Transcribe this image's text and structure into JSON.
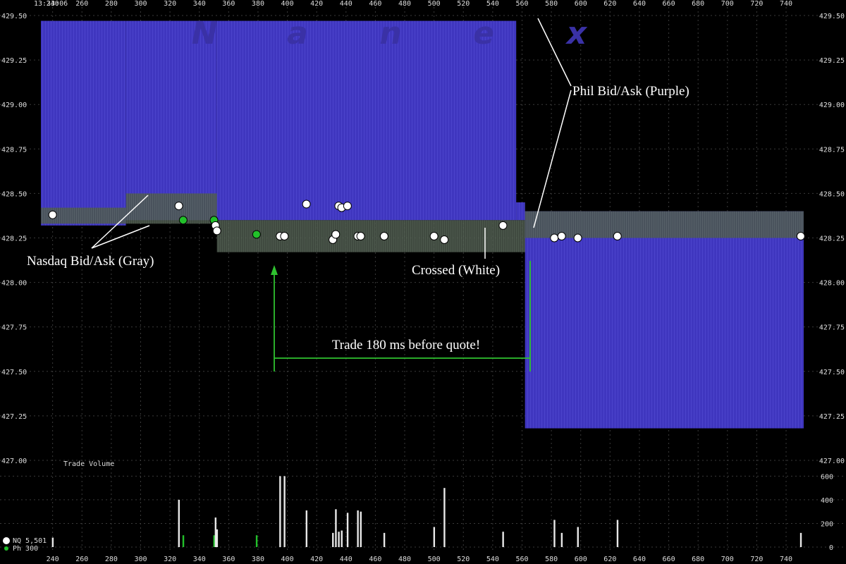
{
  "timestamp": "13:33:06",
  "watermark": "Nanex",
  "chart_data": {
    "type": "line",
    "x_axis": {
      "ticks": [
        240,
        260,
        280,
        300,
        320,
        340,
        360,
        380,
        400,
        420,
        440,
        460,
        480,
        500,
        520,
        540,
        560,
        580,
        600,
        620,
        640,
        660,
        680,
        700,
        720,
        740
      ]
    },
    "y_axis": {
      "ticks": [
        "429.50",
        "429.25",
        "429.00",
        "428.75",
        "428.50",
        "428.25",
        "428.00",
        "427.75",
        "427.50",
        "427.25",
        "427.00"
      ],
      "ylim": [
        427.0,
        429.5
      ]
    },
    "volume_axis": {
      "label": "Trade Volume",
      "ticks": [
        "600",
        "400",
        "200",
        "0"
      ],
      "ylim": [
        0,
        650
      ]
    },
    "series": [
      {
        "name": "Nasdaq Bid/Ask (Gray)",
        "color": "#5a6a5a"
      },
      {
        "name": "Phil Bid/Ask (Purple)",
        "color": "#4a3fbf"
      }
    ],
    "phil_quotes": [
      {
        "x_start": 232,
        "x_end": 290,
        "bid": 428.32,
        "ask": 429.47
      },
      {
        "x_start": 290,
        "x_end": 352,
        "bid": 428.35,
        "ask": 429.47
      },
      {
        "x_start": 352,
        "x_end": 556,
        "bid": 428.35,
        "ask": 429.47
      },
      {
        "x_start": 556,
        "x_end": 562,
        "bid": 428.35,
        "ask": 428.45
      },
      {
        "x_start": 562,
        "x_end": 752,
        "bid": 427.18,
        "ask": 428.4
      }
    ],
    "nasdaq_quotes": [
      {
        "x_start": 232,
        "x_end": 290,
        "bid": 428.33,
        "ask": 428.42
      },
      {
        "x_start": 290,
        "x_end": 352,
        "bid": 428.33,
        "ask": 428.5
      },
      {
        "x_start": 352,
        "x_end": 562,
        "bid": 428.17,
        "ask": 428.35
      },
      {
        "x_start": 562,
        "x_end": 752,
        "bid": 428.25,
        "ask": 428.4
      }
    ],
    "trades": [
      {
        "x": 240,
        "price": 428.38,
        "color": "#ffffff",
        "volume": 80
      },
      {
        "x": 326,
        "price": 428.43,
        "color": "#ffffff",
        "volume": 400
      },
      {
        "x": 329,
        "price": 428.35,
        "color": "#22c02a",
        "volume": 100
      },
      {
        "x": 350,
        "price": 428.35,
        "color": "#22c02a",
        "volume": 100
      },
      {
        "x": 351,
        "price": 428.32,
        "color": "#ffffff",
        "volume": 250
      },
      {
        "x": 352,
        "price": 428.29,
        "color": "#ffffff",
        "volume": 150
      },
      {
        "x": 379,
        "price": 428.27,
        "color": "#22c02a",
        "volume": 100
      },
      {
        "x": 395,
        "price": 428.26,
        "color": "#ffffff",
        "volume": 600
      },
      {
        "x": 398,
        "price": 428.26,
        "color": "#ffffff",
        "volume": 600
      },
      {
        "x": 413,
        "price": 428.44,
        "color": "#ffffff",
        "volume": 310
      },
      {
        "x": 431,
        "price": 428.24,
        "color": "#ffffff",
        "volume": 120
      },
      {
        "x": 433,
        "price": 428.27,
        "color": "#ffffff",
        "volume": 320
      },
      {
        "x": 435,
        "price": 428.43,
        "color": "#ffffff",
        "volume": 130
      },
      {
        "x": 437,
        "price": 428.42,
        "color": "#ffffff",
        "volume": 140
      },
      {
        "x": 441,
        "price": 428.43,
        "color": "#ffffff",
        "volume": 290
      },
      {
        "x": 448,
        "price": 428.26,
        "color": "#ffffff",
        "volume": 310
      },
      {
        "x": 450,
        "price": 428.26,
        "color": "#ffffff",
        "volume": 300
      },
      {
        "x": 466,
        "price": 428.26,
        "color": "#ffffff",
        "volume": 120
      },
      {
        "x": 500,
        "price": 428.26,
        "color": "#ffffff",
        "volume": 170
      },
      {
        "x": 507,
        "price": 428.24,
        "color": "#ffffff",
        "volume": 500
      },
      {
        "x": 547,
        "price": 428.32,
        "color": "#ffffff",
        "volume": 130
      },
      {
        "x": 582,
        "price": 428.25,
        "color": "#ffffff",
        "volume": 230
      },
      {
        "x": 587,
        "price": 428.26,
        "color": "#ffffff",
        "volume": 120
      },
      {
        "x": 598,
        "price": 428.25,
        "color": "#ffffff",
        "volume": 170
      },
      {
        "x": 625,
        "price": 428.26,
        "color": "#ffffff",
        "volume": 230
      },
      {
        "x": 750,
        "price": 428.26,
        "color": "#ffffff",
        "volume": 120
      }
    ],
    "annotations": {
      "nasdaq": "Nasdaq Bid/Ask (Gray)",
      "phil": "Phil Bid/Ask (Purple)",
      "crossed": "Crossed (White)",
      "trade_gap": "Trade 180 ms before quote!"
    }
  },
  "legend": [
    {
      "label": "NQ 5,501",
      "color": "#ffffff"
    },
    {
      "label": "Ph   300",
      "color": "#22c02a"
    }
  ]
}
